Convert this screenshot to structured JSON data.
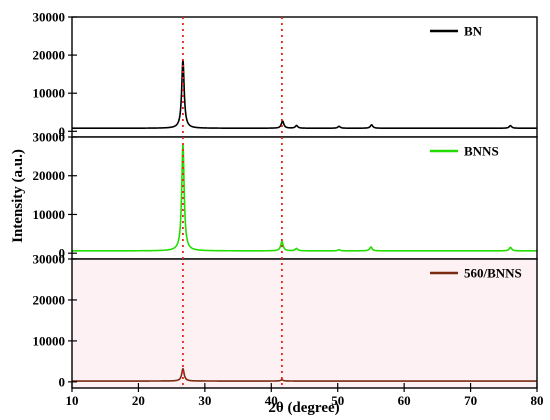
{
  "chart_data": {
    "type": "line",
    "xlabel": "2θ (degree)",
    "ylabel": "Intensity (a.u.)",
    "xlim": [
      10,
      80
    ],
    "x_ticks": [
      10,
      20,
      30,
      40,
      50,
      60,
      70,
      80
    ],
    "reference_lines_x": [
      26.7,
      41.6
    ],
    "reference_line_color": "#e8241b",
    "panels": [
      {
        "name": "BN",
        "color": "#000000",
        "ylim": [
          -1500,
          30000
        ],
        "y_ticks": [
          0,
          10000,
          20000,
          30000
        ],
        "baseline": 800,
        "peaks": [
          {
            "x": 26.7,
            "y": 18700
          },
          {
            "x": 41.7,
            "y": 2700
          },
          {
            "x": 43.8,
            "y": 1500
          },
          {
            "x": 50.2,
            "y": 1300
          },
          {
            "x": 55.1,
            "y": 1700
          },
          {
            "x": 76.0,
            "y": 1500
          }
        ]
      },
      {
        "name": "BNNS",
        "color": "#22dd00",
        "ylim": [
          -1500,
          30000
        ],
        "y_ticks": [
          0,
          10000,
          20000,
          30000
        ],
        "baseline": 600,
        "peaks": [
          {
            "x": 26.7,
            "y": 28200
          },
          {
            "x": 41.6,
            "y": 3000
          },
          {
            "x": 43.8,
            "y": 1200
          },
          {
            "x": 50.2,
            "y": 900
          },
          {
            "x": 55.0,
            "y": 1600
          },
          {
            "x": 76.0,
            "y": 1500
          }
        ]
      },
      {
        "name": "560/BNNS",
        "color": "#7a2a10",
        "ylim": [
          -1500,
          30000
        ],
        "y_ticks": [
          0,
          10000,
          20000,
          30000
        ],
        "baseline": 200,
        "peaks": [
          {
            "x": 26.7,
            "y": 3200
          },
          {
            "x": 41.6,
            "y": 500
          }
        ]
      }
    ]
  }
}
